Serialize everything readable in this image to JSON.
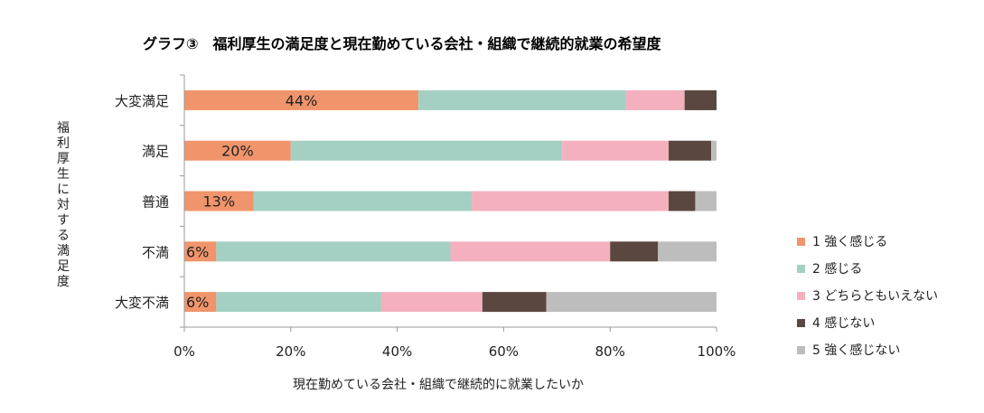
{
  "chart_data": {
    "type": "bar",
    "orientation": "horizontal",
    "stacked": true,
    "percent_axis": true,
    "title": "グラフ③　福利厚生の満足度と現在勤めている会社・組織で継続的就業の希望度",
    "xlabel": "現在勤めている会社・組織で継続的に就業したいか",
    "ylabel": "福利厚生に対する満足度",
    "xlim": [
      0,
      100
    ],
    "xticks": [
      "0%",
      "20%",
      "40%",
      "60%",
      "80%",
      "100%"
    ],
    "categories": [
      "大変満足",
      "満足",
      "普通",
      "不満",
      "大変不満"
    ],
    "series": [
      {
        "name": "1 強く感じる",
        "color": "#F0956B",
        "values": [
          44,
          20,
          13,
          6,
          6
        ]
      },
      {
        "name": "2 感じる",
        "color": "#A3D0C2",
        "values": [
          39,
          51,
          41,
          44,
          31
        ]
      },
      {
        "name": "3 どちらともいえない",
        "color": "#F4B0BF",
        "values": [
          11,
          20,
          37,
          30,
          19
        ]
      },
      {
        "name": "4 感じない",
        "color": "#5A4840",
        "values": [
          6,
          8,
          5,
          9,
          12
        ]
      },
      {
        "name": "5 強く感じない",
        "color": "#BDBDBD",
        "values": [
          0,
          1,
          4,
          11,
          32
        ]
      }
    ],
    "data_labels": [
      "44%",
      "20%",
      "13%",
      "6%",
      "6%"
    ],
    "legend": "right",
    "grid": false
  }
}
